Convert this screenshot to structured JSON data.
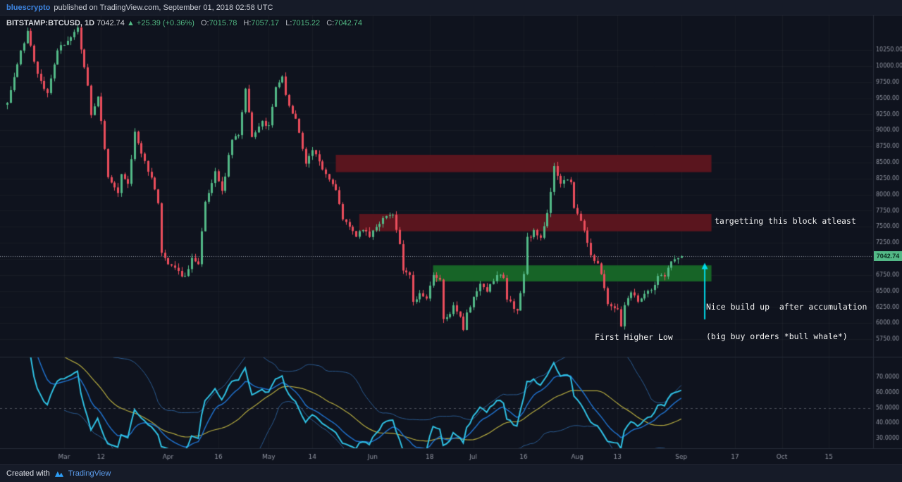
{
  "top_bar": {
    "author": "bluescrypto",
    "published": "published on TradingView.com, September 01, 2018 02:58 UTC"
  },
  "legend": {
    "symbol": "BITSTAMP:BTCUSD, 1D",
    "last": "7042.74",
    "direction": "▲",
    "change": "+25.39 (+0.36%)",
    "open_label": "O:",
    "open": "7015.78",
    "high_label": "H:",
    "high": "7057.17",
    "low_label": "L:",
    "low": "7015.22",
    "close_label": "C:",
    "close": "7042.74"
  },
  "price_label": "7042.74",
  "annotations": {
    "target_block": "targetting this block atleast",
    "build_up_line1": "Nice build up  after accumulation",
    "build_up_line2": "(big buy orders *bull whale*)",
    "first_higher_low": "First Higher Low"
  },
  "footer": {
    "created_with": "Created with",
    "brand": "TradingView"
  },
  "chart_data": {
    "type": "candlestick",
    "title": "BITSTAMP:BTCUSD, 1D",
    "exchange_symbol": "BITSTAMP:BTCUSD",
    "interval": "1D",
    "current_price": 7042.74,
    "last_candle": {
      "open": 7015.78,
      "high": 7057.17,
      "low": 7015.22,
      "close": 7042.74
    },
    "y_axis": {
      "min": 5500,
      "max": 10700,
      "tick_step": 250,
      "ticks": [
        10250,
        10000,
        9750,
        9500,
        9250,
        9000,
        8750,
        8500,
        8250,
        8000,
        7750,
        7500,
        7250,
        7000,
        6750,
        6500,
        6250,
        6000,
        5750
      ]
    },
    "x_axis": {
      "start_label_date": "2018-02-12",
      "ticks": [
        {
          "label": "Mar",
          "day": 17
        },
        {
          "label": "12",
          "day": 28
        },
        {
          "label": "Apr",
          "day": 48
        },
        {
          "label": "16",
          "day": 63
        },
        {
          "label": "May",
          "day": 78
        },
        {
          "label": "14",
          "day": 91
        },
        {
          "label": "Jun",
          "day": 109
        },
        {
          "label": "18",
          "day": 126
        },
        {
          "label": "Jul",
          "day": 139
        },
        {
          "label": "16",
          "day": 154
        },
        {
          "label": "Aug",
          "day": 170
        },
        {
          "label": "13",
          "day": 182
        },
        {
          "label": "Sep",
          "day": 201
        },
        {
          "label": "17",
          "day": 217
        },
        {
          "label": "Oct",
          "day": 231
        },
        {
          "label": "15",
          "day": 245
        }
      ]
    },
    "price_path_day_close": [
      [
        -20,
        8600
      ],
      [
        -10,
        9050
      ],
      [
        0,
        9400
      ],
      [
        3,
        10050
      ],
      [
        6,
        10550
      ],
      [
        9,
        9850
      ],
      [
        12,
        9580
      ],
      [
        15,
        10250
      ],
      [
        18,
        10420
      ],
      [
        21,
        10580
      ],
      [
        24,
        9700
      ],
      [
        25,
        9250
      ],
      [
        27,
        9550
      ],
      [
        30,
        8250
      ],
      [
        33,
        8050
      ],
      [
        34,
        8350
      ],
      [
        36,
        8150
      ],
      [
        38,
        8950
      ],
      [
        40,
        8650
      ],
      [
        43,
        8250
      ],
      [
        45,
        7850
      ],
      [
        46,
        7100
      ],
      [
        48,
        6950
      ],
      [
        51,
        6820
      ],
      [
        53,
        6700
      ],
      [
        55,
        7050
      ],
      [
        57,
        6900
      ],
      [
        59,
        7900
      ],
      [
        62,
        8350
      ],
      [
        64,
        8050
      ],
      [
        67,
        8850
      ],
      [
        69,
        8950
      ],
      [
        71,
        9650
      ],
      [
        73,
        8870
      ],
      [
        76,
        9150
      ],
      [
        78,
        9050
      ],
      [
        80,
        9650
      ],
      [
        82,
        9820
      ],
      [
        84,
        9350
      ],
      [
        86,
        9200
      ],
      [
        88,
        8700
      ],
      [
        89,
        8480
      ],
      [
        91,
        8720
      ],
      [
        93,
        8500
      ],
      [
        96,
        8250
      ],
      [
        98,
        8050
      ],
      [
        100,
        7600
      ],
      [
        102,
        7480
      ],
      [
        104,
        7350
      ],
      [
        106,
        7480
      ],
      [
        108,
        7370
      ],
      [
        110,
        7500
      ],
      [
        112,
        7640
      ],
      [
        115,
        7690
      ],
      [
        117,
        7250
      ],
      [
        118,
        6840
      ],
      [
        120,
        6740
      ],
      [
        121,
        6350
      ],
      [
        123,
        6450
      ],
      [
        125,
        6410
      ],
      [
        127,
        6760
      ],
      [
        129,
        6710
      ],
      [
        130,
        6080
      ],
      [
        132,
        6170
      ],
      [
        133,
        6280
      ],
      [
        135,
        6070
      ],
      [
        136,
        5880
      ],
      [
        137,
        6150
      ],
      [
        139,
        6390
      ],
      [
        141,
        6620
      ],
      [
        143,
        6510
      ],
      [
        146,
        6760
      ],
      [
        148,
        6710
      ],
      [
        149,
        6380
      ],
      [
        151,
        6250
      ],
      [
        152,
        6180
      ],
      [
        154,
        6740
      ],
      [
        155,
        7320
      ],
      [
        157,
        7420
      ],
      [
        159,
        7330
      ],
      [
        161,
        7720
      ],
      [
        163,
        8420
      ],
      [
        165,
        8180
      ],
      [
        166,
        8230
      ],
      [
        168,
        8170
      ],
      [
        169,
        7780
      ],
      [
        171,
        7600
      ],
      [
        172,
        7420
      ],
      [
        174,
        7030
      ],
      [
        176,
        6960
      ],
      [
        178,
        6550
      ],
      [
        179,
        6300
      ],
      [
        181,
        6250
      ],
      [
        182,
        6190
      ],
      [
        183,
        5980
      ],
      [
        184,
        6250
      ],
      [
        186,
        6480
      ],
      [
        188,
        6320
      ],
      [
        190,
        6450
      ],
      [
        192,
        6530
      ],
      [
        194,
        6710
      ],
      [
        196,
        6730
      ],
      [
        198,
        6940
      ],
      [
        200,
        7000
      ],
      [
        201,
        7042.74
      ]
    ],
    "zones": [
      {
        "name": "upper-resistance-block",
        "from_day": 98,
        "to_day": 210,
        "from_price": 8350,
        "to_price": 8620,
        "color": "rgba(97,22,30,0.92)"
      },
      {
        "name": "mid-resistance-block",
        "from_day": 105,
        "to_day": 210,
        "from_price": 7430,
        "to_price": 7700,
        "color": "rgba(97,22,30,0.92)"
      },
      {
        "name": "support-accumulation-block",
        "from_day": 127,
        "to_day": 210,
        "from_price": 6650,
        "to_price": 6900,
        "color": "rgba(24,104,40,0.95)"
      }
    ],
    "arrow": {
      "day": 208,
      "from_price": 6060,
      "to_price": 6940,
      "color": "#00d9e8"
    },
    "candle_colors": {
      "up": "#53b987",
      "down": "#eb4d5c"
    },
    "indicator": {
      "name": "RSI with Bollinger Bands",
      "rsi_period": 14,
      "signal_period": 8,
      "band_period": 24,
      "band_mult": 1.9,
      "range": [
        23,
        83
      ],
      "ticks": [
        70,
        60,
        50,
        40,
        30
      ],
      "mid_level": 50,
      "colors": {
        "rsi": "#2fc1e3",
        "signal": "#1f6fc9",
        "basis": "#b3a93f",
        "band": "#2a5a8f"
      }
    }
  }
}
